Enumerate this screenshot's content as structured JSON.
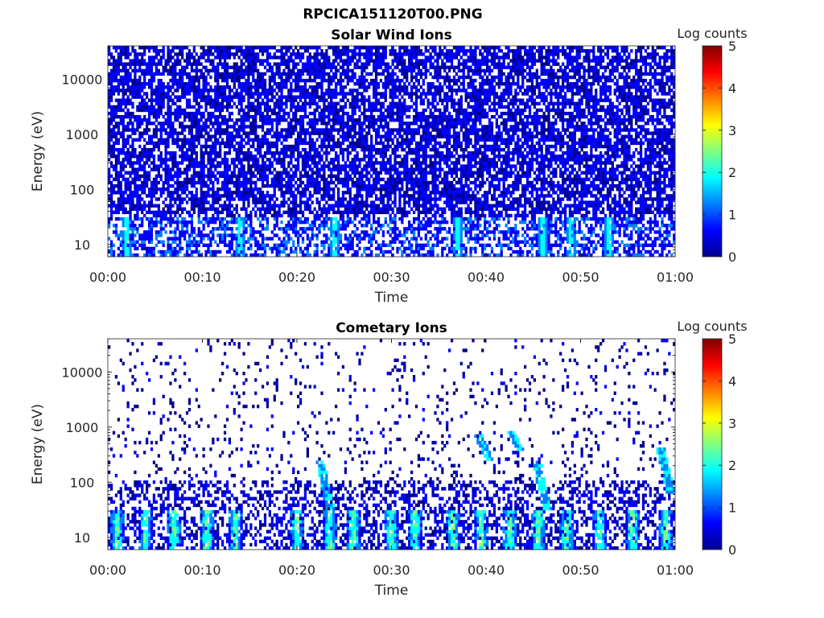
{
  "figure": {
    "title": "RPCICA151120T00.PNG"
  },
  "colormap": [
    "#00008f",
    "#0000ff",
    "#0080ff",
    "#00ffff",
    "#80ff80",
    "#ffff00",
    "#ff8000",
    "#ff0000",
    "#800000"
  ],
  "chart_data": [
    {
      "type": "heatmap",
      "title": "Solar Wind Ions",
      "xlabel": "Time",
      "ylabel": "Energy (eV)",
      "y_scale": "log",
      "xlim": [
        "00:00",
        "01:00"
      ],
      "ylim": [
        6,
        40000
      ],
      "xticks": [
        "00:00",
        "00:10",
        "00:20",
        "00:30",
        "00:40",
        "00:50",
        "01:00"
      ],
      "yticks": [
        {
          "value": 10,
          "label": "10"
        },
        {
          "value": 100,
          "label": "100"
        },
        {
          "value": 1000,
          "label": "1000"
        },
        {
          "value": 10000,
          "label": "10000"
        }
      ],
      "colorbar": {
        "label": "Log counts",
        "range": [
          0,
          5
        ],
        "ticks": [
          "0",
          "1",
          "2",
          "3",
          "4",
          "5"
        ]
      },
      "structure": {
        "background_fill": 0.72,
        "low_energy_hotspots_minutes": [
          2,
          14,
          24,
          37,
          46,
          49,
          53
        ],
        "hotspot_peak_log_counts": 2.2
      }
    },
    {
      "type": "heatmap",
      "title": "Cometary Ions",
      "xlabel": "Time",
      "ylabel": "Energy (eV)",
      "y_scale": "log",
      "xlim": [
        "00:00",
        "01:00"
      ],
      "ylim": [
        6,
        40000
      ],
      "xticks": [
        "00:00",
        "00:10",
        "00:20",
        "00:30",
        "00:40",
        "00:50",
        "01:00"
      ],
      "yticks": [
        {
          "value": 10,
          "label": "10"
        },
        {
          "value": 100,
          "label": "100"
        },
        {
          "value": 1000,
          "label": "1000"
        },
        {
          "value": 10000,
          "label": "10000"
        }
      ],
      "colorbar": {
        "label": "Log counts",
        "range": [
          0,
          5
        ],
        "ticks": [
          "0",
          "1",
          "2",
          "3",
          "4",
          "5"
        ]
      },
      "structure": {
        "background_fill": 0.06,
        "low_energy_bursts_minutes": [
          1,
          4,
          7,
          10.5,
          13.5,
          20,
          23.5,
          26,
          30,
          32.5,
          36.5,
          39.5,
          42.5,
          45.5,
          48.5,
          52,
          55.5,
          59
        ],
        "burst_peak_log_counts": 3.0,
        "dispersed_features": [
          {
            "start_minute": 39.2,
            "energy_range_eV": [
              250,
              700
            ]
          },
          {
            "start_minute": 42.5,
            "energy_range_eV": [
              350,
              900
            ]
          },
          {
            "start_minute": 22.4,
            "energy_range_eV": [
              30,
              250
            ]
          },
          {
            "start_minute": 45.3,
            "energy_range_eV": [
              30,
              250
            ]
          },
          {
            "start_minute": 58.4,
            "energy_range_eV": [
              60,
              450
            ]
          }
        ]
      }
    }
  ]
}
